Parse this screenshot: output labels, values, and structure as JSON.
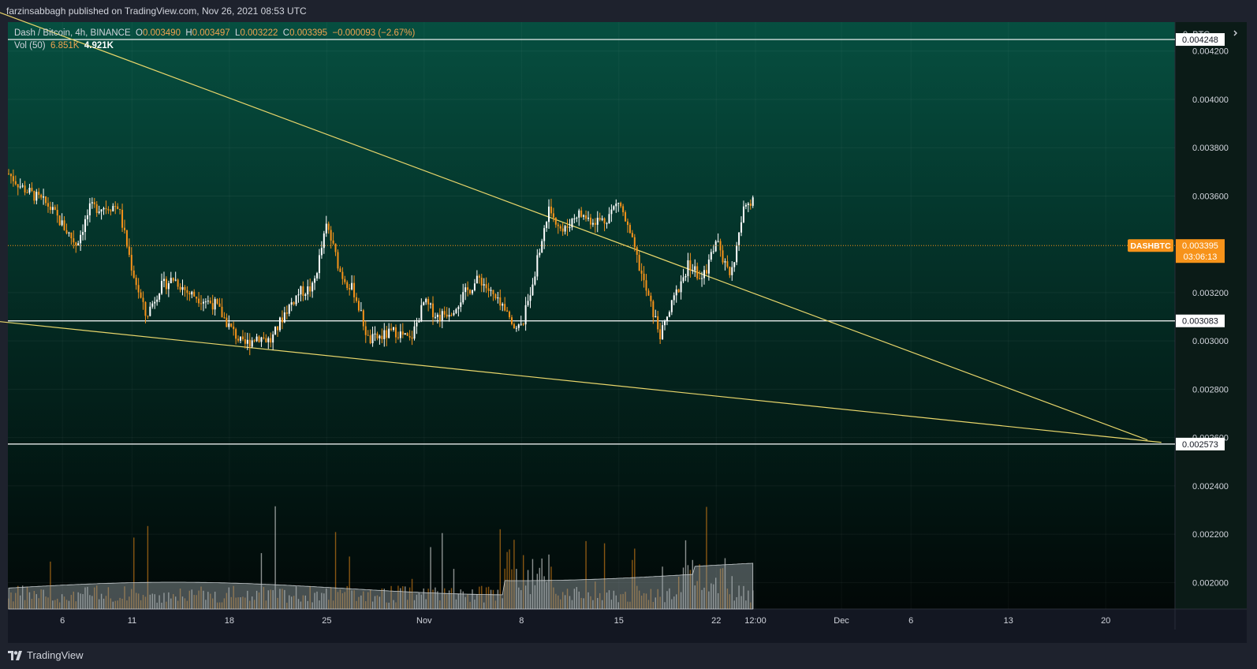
{
  "header": {
    "publisher": "farzinsabbagh published on TradingView.com, Nov 26, 2021 08:53 UTC"
  },
  "legend": {
    "symbol": "Dash / Bitcoin, 4h, BINANCE",
    "o_label": "O",
    "o": "0.003490",
    "h_label": "H",
    "h": "0.003497",
    "l_label": "L",
    "l": "0.003222",
    "c_label": "C",
    "c": "0.003395",
    "change": "−0.000093 (−2.67%)",
    "vol_label": "Vol (50)",
    "vol1": "6.851K",
    "vol2": "4.921K"
  },
  "footer": {
    "brand": "TradingView"
  },
  "colors": {
    "up": "#ffffff",
    "down": "#f7931a",
    "trendline": "#e9d66b",
    "level": "#ffffff",
    "bg_top": "#064f40",
    "bg_bottom": "#030c0a",
    "current_price": "#f7931a"
  },
  "chart_data": {
    "type": "candlestick",
    "symbol": "DASHBTC",
    "price_axis": {
      "unit": "BTC",
      "ticks": [
        "0.004200",
        "0.004000",
        "0.003800",
        "0.003600",
        "0.003200",
        "0.003000",
        "0.002800",
        "0.002600",
        "0.002400",
        "0.002200",
        "0.002000"
      ],
      "ylim": [
        0.00189,
        0.00432
      ]
    },
    "time_axis": {
      "ticks": [
        "6",
        "11",
        "18",
        "25",
        "Nov",
        "8",
        "15",
        "22",
        "12:00",
        "Dec",
        "6",
        "13",
        "20"
      ]
    },
    "current_price": {
      "tag": "DASHBTC",
      "value": "0.003395",
      "countdown": "03:06:13"
    },
    "horizontal_levels": [
      {
        "label": "0.004248",
        "value": 0.004248
      },
      {
        "label": "0.003083",
        "value": 0.003083
      },
      {
        "label": "0.002573",
        "value": 0.002573
      }
    ],
    "trendlines": [
      {
        "from": [
          "Oct 1",
          0.00437
        ],
        "to": [
          "Dec 23",
          0.00259
        ]
      },
      {
        "from": [
          "Oct 1",
          0.003083
        ],
        "to": [
          "Dec 24",
          0.00258
        ]
      }
    ],
    "price_path": {
      "points": [
        [
          "Oct 2",
          0.0037
        ],
        [
          "Oct 3",
          0.00364
        ],
        [
          "Oct 5",
          0.00356
        ],
        [
          "Oct 6",
          0.00348
        ],
        [
          "Oct 7",
          0.0034
        ],
        [
          "Oct 8",
          0.00355
        ],
        [
          "Oct 10",
          0.00356
        ],
        [
          "Oct 11",
          0.0033
        ],
        [
          "Oct 12",
          0.0031
        ],
        [
          "Oct 13",
          0.00322
        ],
        [
          "Oct 14",
          0.00326
        ],
        [
          "Oct 15",
          0.0032
        ],
        [
          "Oct 17",
          0.00315
        ],
        [
          "Oct 18",
          0.00306
        ],
        [
          "Oct 19",
          0.00298
        ],
        [
          "Oct 20",
          0.00302
        ],
        [
          "Oct 21",
          0.003
        ],
        [
          "Oct 22",
          0.00312
        ],
        [
          "Oct 23",
          0.0032
        ],
        [
          "Oct 24",
          0.00322
        ],
        [
          "Oct 25",
          0.00348
        ],
        [
          "Oct 26",
          0.00328
        ],
        [
          "Oct 27",
          0.0032
        ],
        [
          "Oct 28",
          0.003
        ],
        [
          "Oct 29",
          0.00302
        ],
        [
          "Oct 30",
          0.00304
        ],
        [
          "Oct 31",
          0.003
        ],
        [
          "Nov 1",
          0.00316
        ],
        [
          "Nov 2",
          0.0031
        ],
        [
          "Nov 3",
          0.00313
        ],
        [
          "Nov 4",
          0.0032
        ],
        [
          "Nov 5",
          0.00326
        ],
        [
          "Nov 6",
          0.00318
        ],
        [
          "Nov 7",
          0.0031
        ],
        [
          "Nov 8",
          0.00305
        ],
        [
          "Nov 9",
          0.0033
        ],
        [
          "Nov 10",
          0.00355
        ],
        [
          "Nov 11",
          0.00345
        ],
        [
          "Nov 12",
          0.00353
        ],
        [
          "Nov 13",
          0.0035
        ],
        [
          "Nov 14",
          0.0035
        ],
        [
          "Nov 15",
          0.00358
        ],
        [
          "Nov 16",
          0.0034
        ],
        [
          "Nov 17",
          0.0032
        ],
        [
          "Nov 18",
          0.00302
        ],
        [
          "Nov 19",
          0.00318
        ],
        [
          "Nov 20",
          0.00332
        ],
        [
          "Nov 21",
          0.00325
        ],
        [
          "Nov 22",
          0.00342
        ],
        [
          "Nov 23",
          0.00325
        ],
        [
          "Nov 24",
          0.00355
        ],
        [
          "Nov 25",
          0.00362
        ],
        [
          "Nov 26",
          0.0034
        ]
      ]
    },
    "volume_axis": {
      "label": "Vol (50)",
      "values": [
        "6.851K",
        "4.921K"
      ]
    }
  }
}
